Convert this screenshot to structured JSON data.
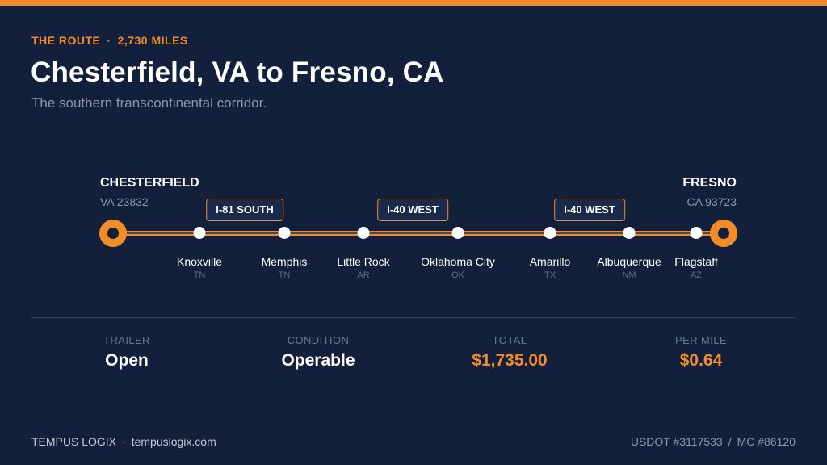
{
  "header": {
    "eyebrow_label": "THE ROUTE",
    "eyebrow_separator": "·",
    "eyebrow_miles": "2,730 MILES",
    "title": "Chesterfield, VA to Fresno, CA",
    "subtitle": "The southern transcontinental corridor."
  },
  "route": {
    "origin": {
      "name": "CHESTERFIELD",
      "sub": "VA 23832"
    },
    "destination": {
      "name": "FRESNO",
      "sub": "CA 93723"
    },
    "highways": [
      "I-81 SOUTH",
      "I-40 WEST",
      "I-40 WEST"
    ],
    "stops": [
      {
        "name": "Knoxville",
        "state": "TN"
      },
      {
        "name": "Memphis",
        "state": "TN"
      },
      {
        "name": "Little Rock",
        "state": "AR"
      },
      {
        "name": "Oklahoma City",
        "state": "OK"
      },
      {
        "name": "Amarillo",
        "state": "TX"
      },
      {
        "name": "Albuquerque",
        "state": "NM"
      },
      {
        "name": "Flagstaff",
        "state": "AZ"
      }
    ]
  },
  "stats": [
    {
      "label": "TRAILER",
      "value": "Open"
    },
    {
      "label": "CONDITION",
      "value": "Operable"
    },
    {
      "label": "TOTAL",
      "value": "$1,735.00"
    },
    {
      "label": "PER MILE",
      "value": "$0.64"
    }
  ],
  "footer": {
    "brand": "TEMPUS LOGIX",
    "separator": "·",
    "website": "tempuslogix.com",
    "usdot": "USDOT #3117533",
    "divider": "/",
    "mc": "MC #86120"
  },
  "colors": {
    "background": "#13203b",
    "accent": "#f28c28",
    "muted": "#8d97ad"
  }
}
